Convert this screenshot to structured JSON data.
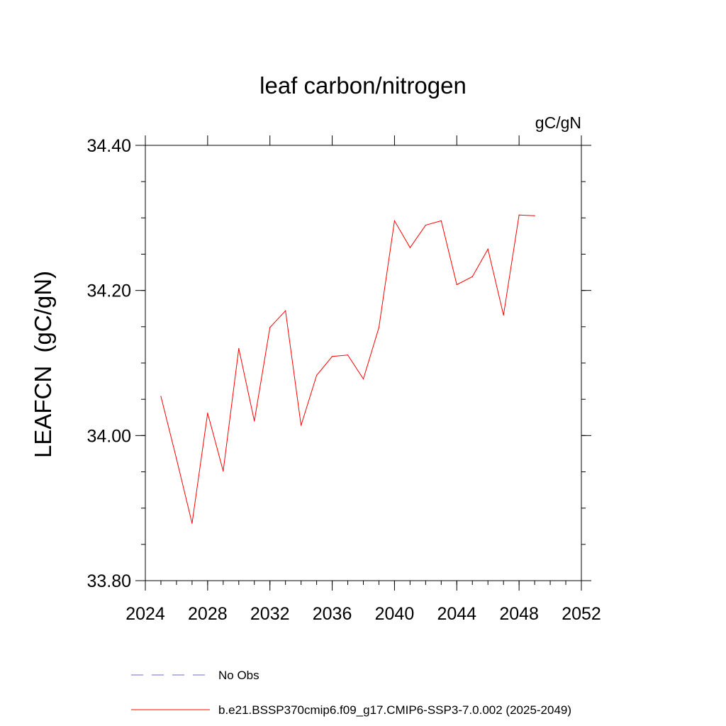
{
  "chart_data": {
    "type": "line",
    "title": "leaf carbon/nitrogen",
    "units_label": "gC/gN",
    "ylabel": "LEAFCN  (gC/gN)",
    "xlabel": "",
    "xlim": [
      2024,
      2052
    ],
    "ylim": [
      33.8,
      34.4
    ],
    "x_ticks": [
      2024,
      2028,
      2032,
      2036,
      2040,
      2044,
      2048,
      2052
    ],
    "x_tick_labels": [
      "2024",
      "2028",
      "2032",
      "2036",
      "2040",
      "2044",
      "2048",
      "2052"
    ],
    "y_ticks": [
      33.8,
      34.0,
      34.2,
      34.4
    ],
    "y_tick_labels": [
      "33.80",
      "34.00",
      "34.20",
      "34.40"
    ],
    "y_minor_step": 0.05,
    "x_minor_step": 1,
    "grid": false,
    "legend_position": "bottom",
    "series": [
      {
        "name": "b.e21.BSSP370cmip6.f09_g17.CMIP6-SSP3-7.0.002 (2025-2049)",
        "color": "#ff0000",
        "dash": "solid",
        "x": [
          2025,
          2026,
          2027,
          2028,
          2029,
          2030,
          2031,
          2032,
          2033,
          2034,
          2035,
          2036,
          2037,
          2038,
          2039,
          2040,
          2041,
          2042,
          2043,
          2044,
          2045,
          2046,
          2047,
          2048,
          2049
        ],
        "y": [
          34.054,
          33.968,
          33.879,
          34.031,
          33.951,
          34.12,
          34.02,
          34.149,
          34.172,
          34.014,
          34.083,
          34.109,
          34.111,
          34.078,
          34.149,
          34.296,
          34.259,
          34.29,
          34.296,
          34.208,
          34.219,
          34.257,
          34.166,
          34.304,
          34.303
        ]
      }
    ],
    "legend": [
      {
        "label": "No Obs",
        "color": "#6b6bd6",
        "dash": "dashed"
      },
      {
        "label": "b.e21.BSSP370cmip6.f09_g17.CMIP6-SSP3-7.0.002 (2025-2049)",
        "color": "#ff0000",
        "dash": "solid"
      }
    ]
  }
}
